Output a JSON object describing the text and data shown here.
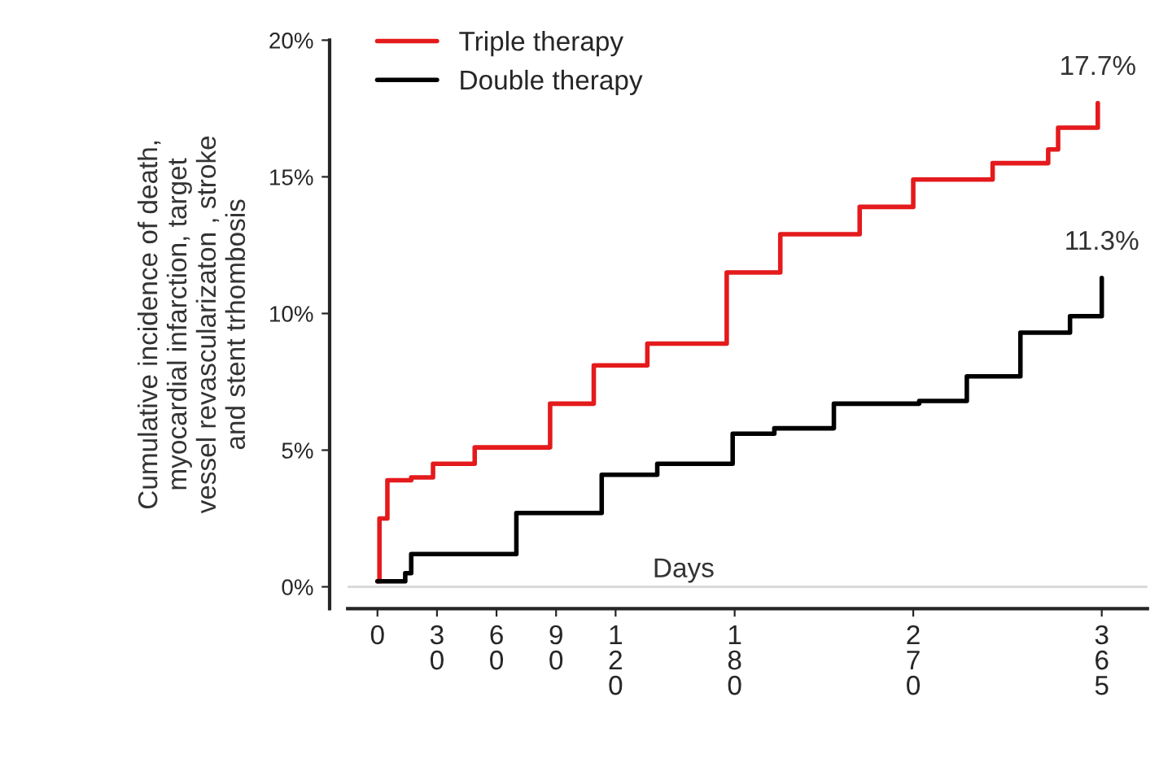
{
  "chart_data": {
    "type": "step",
    "ylabel": "Cumulative incidence of death,\nmyocardial infarction, target\nvessel revascularizaton , stroke\nand stent trhombosis",
    "xlabel": "Days",
    "series": [
      {
        "name": "Triple therapy",
        "color": "#e41a1c",
        "x": [
          0,
          1,
          5,
          17,
          28,
          49,
          68,
          87,
          109,
          136,
          176,
          203,
          243,
          270,
          310,
          338,
          343,
          363
        ],
        "values": [
          0.2,
          2.5,
          3.9,
          4.0,
          4.5,
          5.1,
          5.1,
          6.7,
          8.1,
          8.9,
          11.5,
          12.9,
          13.9,
          14.9,
          15.5,
          16.0,
          16.8,
          17.7
        ]
      },
      {
        "name": "Double therapy",
        "color": "#000000",
        "x": [
          0,
          14,
          17,
          52,
          70,
          102,
          113,
          136,
          141,
          170,
          179,
          200,
          230,
          273,
          297,
          324,
          349,
          365
        ],
        "values": [
          0.2,
          0.5,
          1.2,
          1.2,
          2.7,
          2.7,
          4.1,
          4.1,
          4.5,
          4.5,
          5.6,
          5.8,
          6.7,
          6.8,
          7.7,
          9.3,
          9.9,
          11.3
        ]
      }
    ],
    "annotations": [
      {
        "text": "17.7%",
        "x": 363,
        "y": 17.7
      },
      {
        "text": "11.3%",
        "x": 365,
        "y": 11.3
      }
    ],
    "ref_lines": [
      {
        "axis": "y",
        "value": 0,
        "color": "#d9d9d9"
      }
    ],
    "xlim": [
      -15,
      388
    ],
    "xticks": [
      0,
      30,
      60,
      90,
      120,
      180,
      270,
      365
    ],
    "ylim": [
      -0.8,
      20
    ],
    "yticks": [
      {
        "value": 0,
        "label": "0%"
      },
      {
        "value": 5,
        "label": "5%"
      },
      {
        "value": 10,
        "label": "10%"
      },
      {
        "value": 15,
        "label": "15%"
      },
      {
        "value": 20,
        "label": "20%"
      }
    ],
    "legend": "top left",
    "grid": false,
    "line_style": "solid"
  }
}
